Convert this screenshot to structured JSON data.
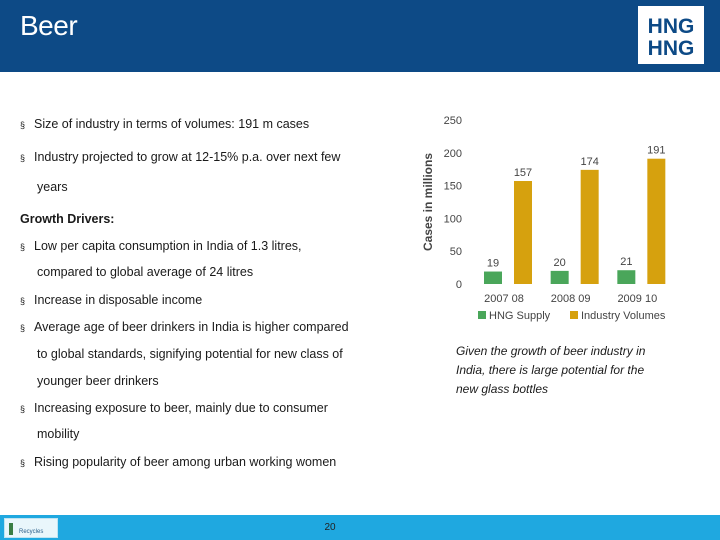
{
  "header": {
    "title": "Beer",
    "logo_text_top": "HNG",
    "logo_text_bottom": "HNG"
  },
  "content": {
    "bullet_1": "Size of industry in terms of volumes: 191 m cases",
    "bullet_2_line1": "Industry projected to grow at 12-15% p.a. over next few",
    "bullet_2_line2": "years",
    "drivers_heading": "Growth Drivers:",
    "driver_1_line1": "Low per capita consumption in India of 1.3 litres,",
    "driver_1_line2": "compared to global average of 24 litres",
    "driver_2": "Increase in disposable income",
    "driver_3_line1": "Average age of beer drinkers in India is higher compared",
    "driver_3_line2": "to global standards, signifying potential for new class of",
    "driver_3_line3": "younger beer drinkers",
    "driver_4_line1": "Increasing exposure to beer, mainly due to consumer",
    "driver_4_line2": "mobility",
    "driver_5": "Rising popularity of beer among urban working women",
    "bullet_mark": "§"
  },
  "caption": "Given the growth of beer industry in India, there is large potential for the new glass bottles",
  "footer": {
    "page": "20",
    "logo_text": "Recycles"
  },
  "colors": {
    "header_bg": "#0d4a86",
    "hng_supply": "#4aa65a",
    "industry_volumes": "#d6a10e",
    "footer_bg": "#1fa8e0"
  },
  "chart_data": {
    "type": "bar",
    "categories": [
      "2007 08",
      "2008 09",
      "2009 10"
    ],
    "series": [
      {
        "name": "HNG Supply",
        "values": [
          19,
          20,
          21
        ],
        "color": "#4aa65a"
      },
      {
        "name": "Industry Volumes",
        "values": [
          157,
          174,
          191
        ],
        "color": "#d6a10e"
      }
    ],
    "ylabel": "Cases in millions",
    "ylim": [
      0,
      250
    ],
    "yticks": [
      0,
      50,
      100,
      150,
      200,
      250
    ],
    "legend": "bottom",
    "grid": false
  }
}
